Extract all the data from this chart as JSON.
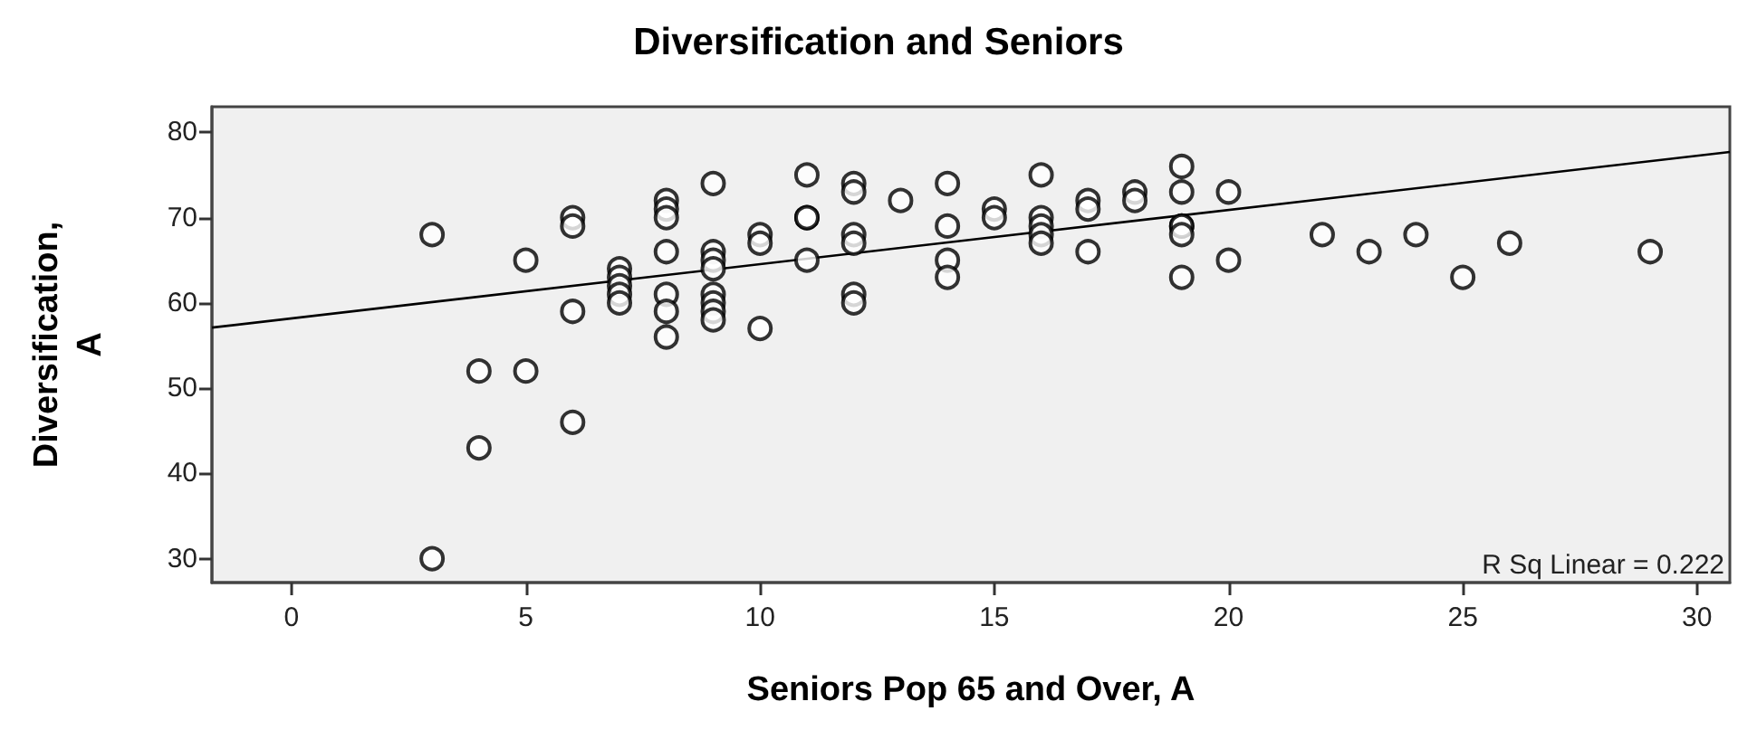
{
  "chart_data": {
    "type": "scatter",
    "title": "Diversification and Seniors",
    "xlabel": "Seniors Pop 65 and Over, A",
    "ylabel": "Diversification, A",
    "annotations": [
      "R Sq Linear = 0.222"
    ],
    "xlim": [
      -1.7,
      30.7
    ],
    "xticks": [
      0,
      5,
      10,
      15,
      20,
      25,
      30
    ],
    "ylim": [
      27.2,
      83
    ],
    "yticks": [
      30,
      40,
      50,
      60,
      70,
      80
    ],
    "grid": false,
    "marker": "circle",
    "series": [
      {
        "color": "#000000",
        "x": [
          3,
          3,
          4,
          4,
          5,
          5,
          6,
          6,
          6,
          6,
          7,
          7,
          7,
          7,
          7,
          8,
          8,
          8,
          8,
          8,
          8,
          8,
          9,
          9,
          9,
          9,
          9,
          9,
          9,
          9,
          10,
          10,
          10,
          11,
          11,
          11,
          11,
          12,
          12,
          12,
          12,
          12,
          12,
          13,
          14,
          14,
          14,
          14,
          15,
          15,
          16,
          16,
          16,
          16,
          16,
          17,
          17,
          17,
          18,
          18,
          19,
          19,
          19,
          19,
          19,
          19,
          20,
          20,
          22,
          23,
          24,
          25,
          26,
          29
        ],
        "values": [
          68,
          30,
          52,
          43,
          65,
          52,
          70,
          69,
          59,
          46,
          64,
          63,
          62,
          61,
          60,
          72,
          71,
          70,
          66,
          61,
          59,
          56,
          74,
          66,
          65,
          64,
          61,
          60,
          59,
          58,
          68,
          67,
          57,
          75,
          70,
          70,
          65,
          74,
          73,
          68,
          67,
          61,
          60,
          72,
          74,
          69,
          65,
          63,
          71,
          70,
          75,
          70,
          69,
          68,
          67,
          72,
          71,
          66,
          73,
          72,
          76,
          73,
          69,
          69,
          68,
          63,
          73,
          65,
          68,
          66,
          68,
          63,
          67,
          66
        ]
      },
      {
        "type": "line",
        "color": "#000000",
        "marker": "none",
        "x": [
          -1.7,
          30.7
        ],
        "values": [
          57.1,
          77.7
        ]
      }
    ]
  }
}
